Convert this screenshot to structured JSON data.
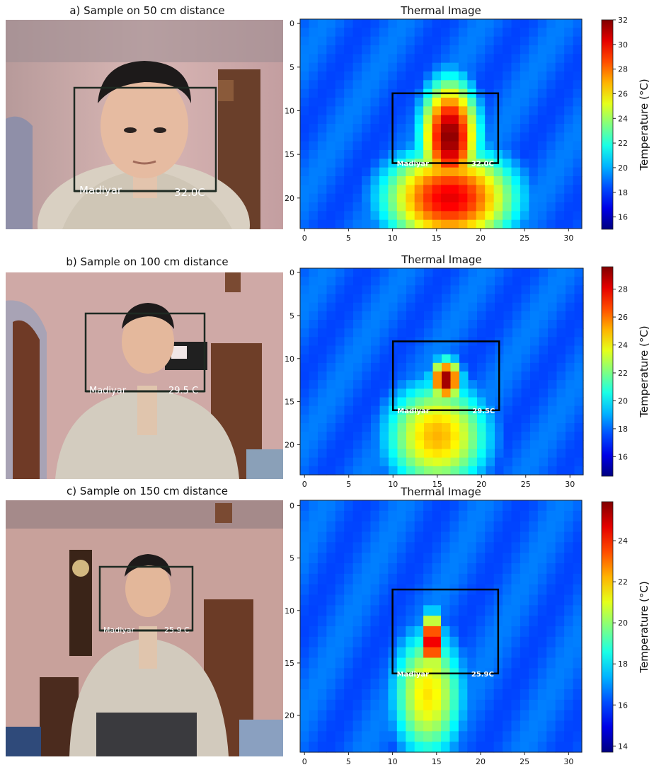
{
  "panels": [
    {
      "caption": "a) Sample on 50 cm distance",
      "name": "Madiyar",
      "photo_temp": "32.0C",
      "thermal_temp": "32.0C",
      "thermal_title": "Thermal Image",
      "colorbar": {
        "label": "Temperature (°C)",
        "min": 15,
        "max": 32,
        "ticks": [
          16,
          18,
          20,
          22,
          24,
          26,
          28,
          30,
          32
        ]
      }
    },
    {
      "caption": "b) Sample on 100 cm distance",
      "name": "Madiyar",
      "photo_temp": "29.5 C",
      "thermal_temp": "29.5C",
      "thermal_title": "Thermal Image",
      "colorbar": {
        "label": "Temperature (°C)",
        "min": 14.6,
        "max": 29.6,
        "ticks": [
          16,
          18,
          20,
          22,
          24,
          26,
          28
        ]
      }
    },
    {
      "caption": "c) Sample on 150 cm distance",
      "name": "Madiyar",
      "photo_temp": "25.9 C",
      "thermal_temp": "25.9C",
      "thermal_title": "Thermal Image",
      "colorbar": {
        "label": "Temperature (°C)",
        "min": 13.7,
        "max": 25.9,
        "ticks": [
          14,
          16,
          18,
          20,
          22,
          24
        ]
      }
    }
  ],
  "axes": {
    "x_ticks": [
      0,
      5,
      10,
      15,
      20,
      25,
      30
    ],
    "y_ticks": [
      0,
      5,
      10,
      15,
      20
    ]
  }
}
